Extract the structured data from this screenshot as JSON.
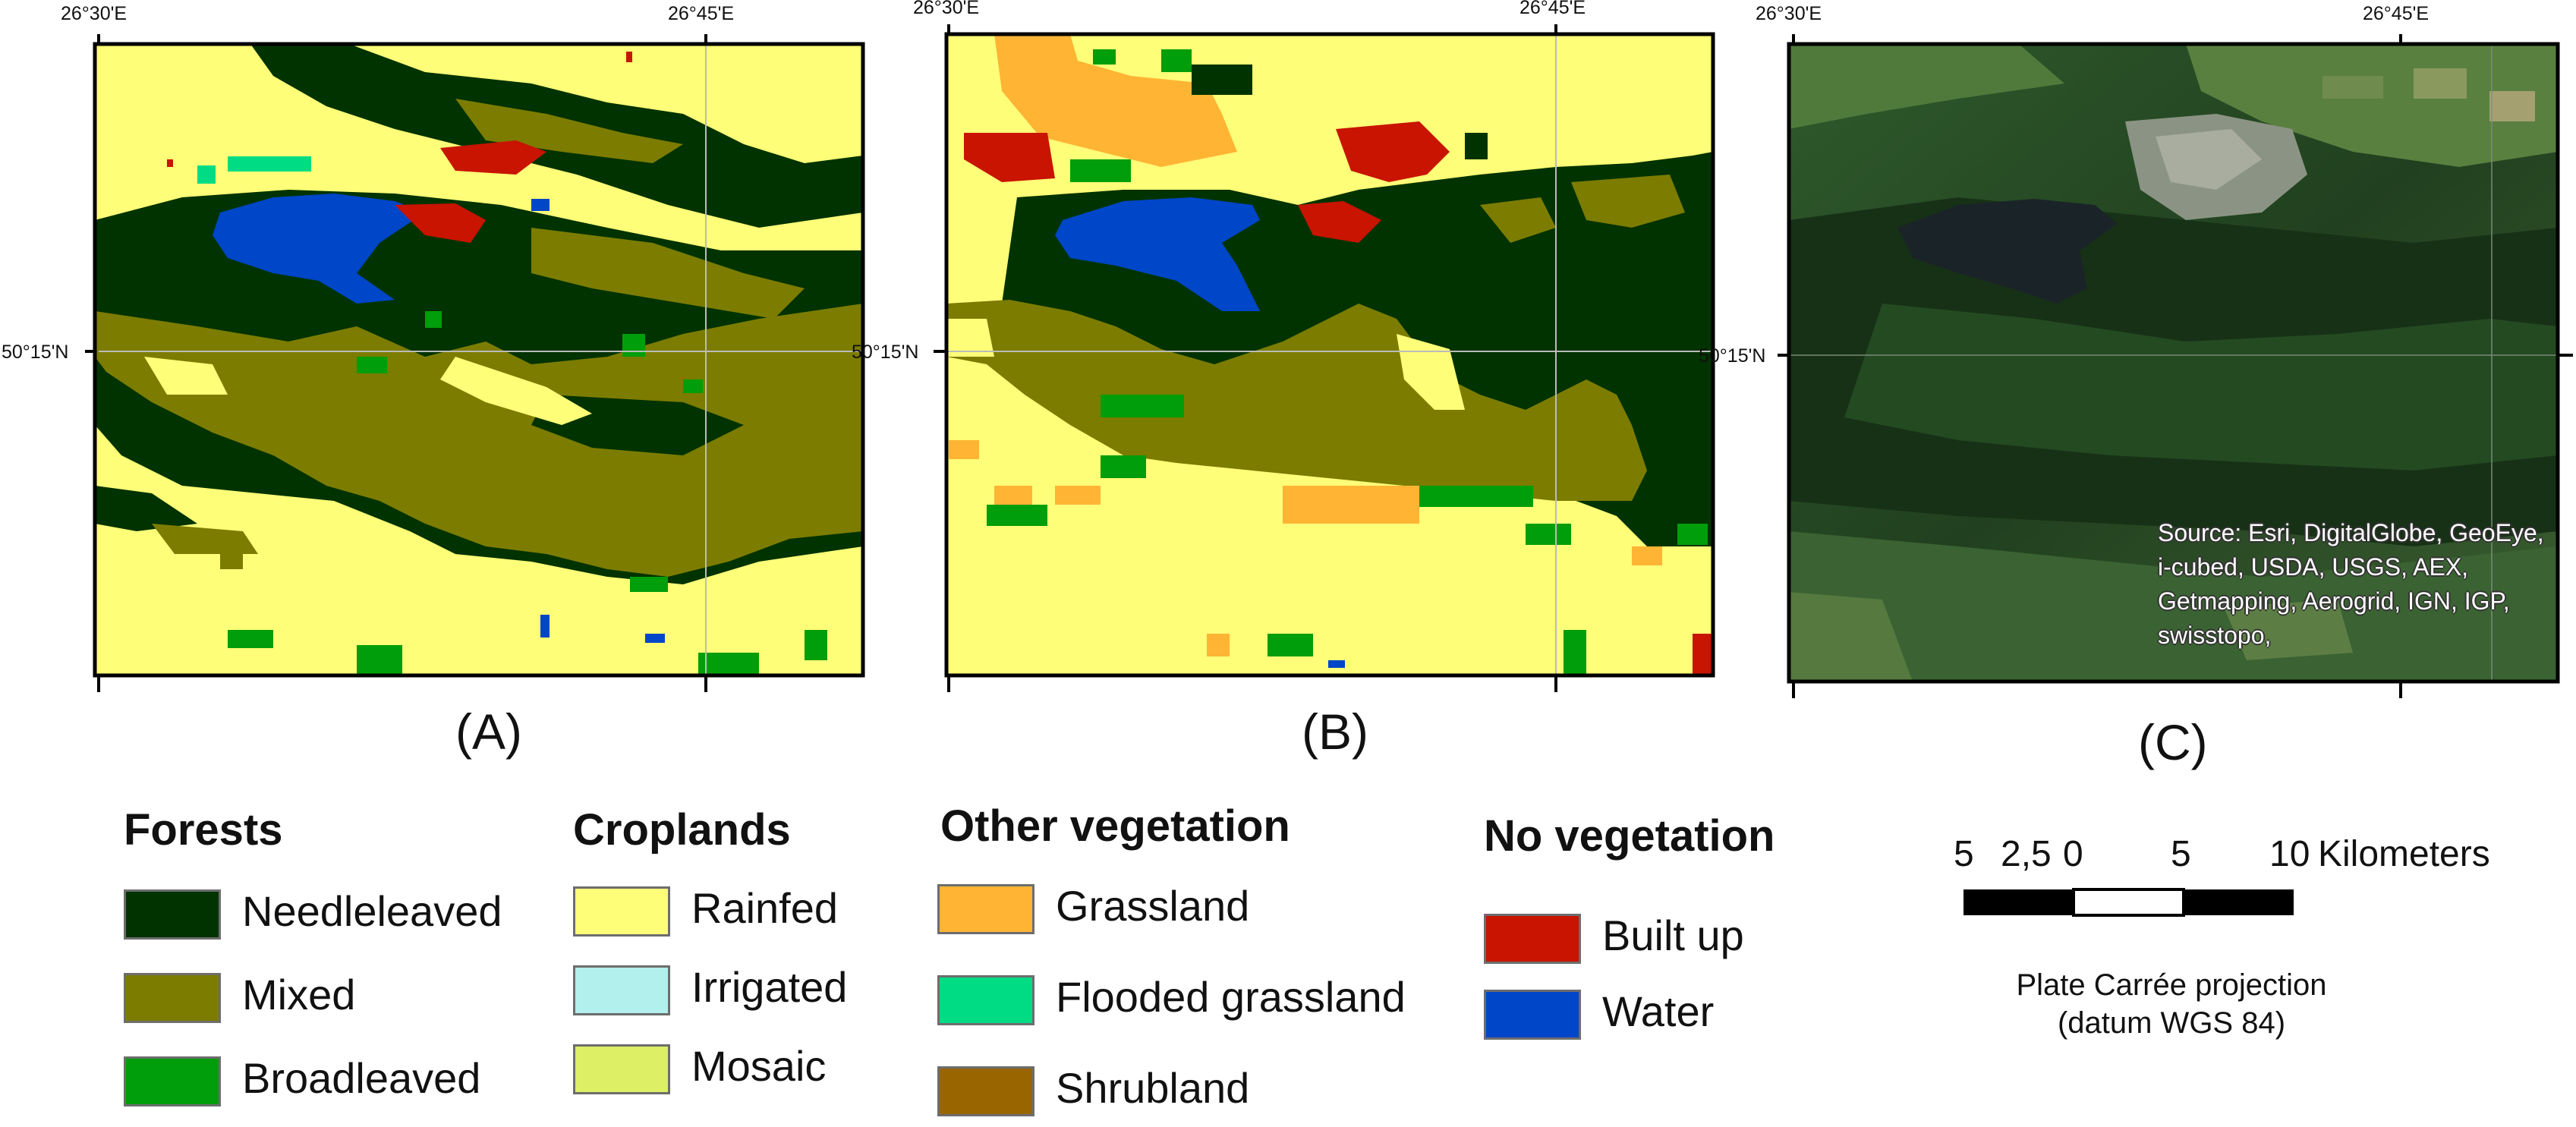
{
  "panels": [
    {
      "id": "A",
      "label": "(A)",
      "lon_labels": [
        "26°30'E",
        "26°45'E"
      ],
      "lat_label": "50°15'N",
      "type": "land-cover-fine"
    },
    {
      "id": "B",
      "label": "(B)",
      "lon_labels": [
        "26°30'E",
        "26°45'E"
      ],
      "lat_label": "50°15'N",
      "type": "land-cover-coarse"
    },
    {
      "id": "C",
      "label": "(C)",
      "lon_labels": [
        "26°30'E",
        "26°45'E"
      ],
      "lat_label": "50°15'N",
      "type": "satellite"
    }
  ],
  "source_attribution": "Source: Esri, DigitalGlobe, GeoEye, i-cubed, USDA, USGS, AEX, Getmapping, Aerogrid, IGN, IGP, swisstopo,",
  "legend": {
    "forests": {
      "heading": "Forests",
      "items": [
        {
          "label": "Needleleaved",
          "color": "#003300"
        },
        {
          "label": "Mixed",
          "color": "#7c7c00"
        },
        {
          "label": "Broadleaved",
          "color": "#009e0a"
        }
      ]
    },
    "croplands": {
      "heading": "Croplands",
      "items": [
        {
          "label": "Rainfed",
          "color": "#fffe78"
        },
        {
          "label": "Irrigated",
          "color": "#b1f0ec"
        },
        {
          "label": "Mosaic",
          "color": "#dcef65"
        }
      ]
    },
    "other_vegetation": {
      "heading": "Other vegetation",
      "items": [
        {
          "label": "Grassland",
          "color": "#ffb434"
        },
        {
          "label": "Flooded grassland",
          "color": "#00dc84"
        },
        {
          "label": "Shrubland",
          "color": "#986500"
        }
      ]
    },
    "no_vegetation": {
      "heading": "No vegetation",
      "items": [
        {
          "label": "Built up",
          "color": "#c81400"
        },
        {
          "label": "Water",
          "color": "#0046c8"
        }
      ]
    }
  },
  "scale_bar": {
    "ticks": [
      "5",
      "2,5",
      "0",
      "5",
      "10"
    ],
    "unit": "Kilometers"
  },
  "projection": {
    "line1": "Plate Carrée projection",
    "line2": "(datum WGS 84)"
  }
}
